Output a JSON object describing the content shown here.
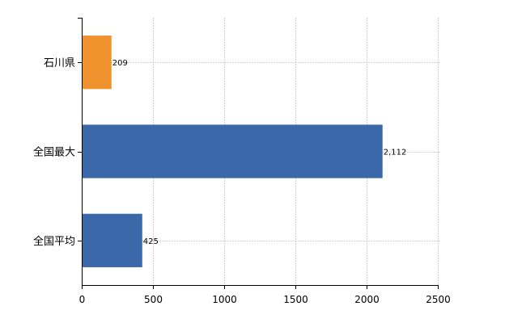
{
  "chart_data": {
    "type": "bar",
    "orientation": "horizontal",
    "categories": [
      "石川県",
      "全国最大",
      "全国平均"
    ],
    "values": [
      209,
      2112,
      425
    ],
    "value_labels": [
      "209",
      "2,112",
      "425"
    ],
    "xlim": [
      0,
      2500
    ],
    "x_ticks": [
      0,
      500,
      1000,
      1500,
      2000,
      2500
    ],
    "x_tick_labels": [
      "0",
      "500",
      "1000",
      "1500",
      "2000",
      "2500"
    ],
    "title": "",
    "xlabel": "",
    "ylabel": "",
    "grid": true,
    "legend": "none",
    "colors": [
      "#f0922e",
      "#3a68a8",
      "#3a68a8"
    ]
  }
}
